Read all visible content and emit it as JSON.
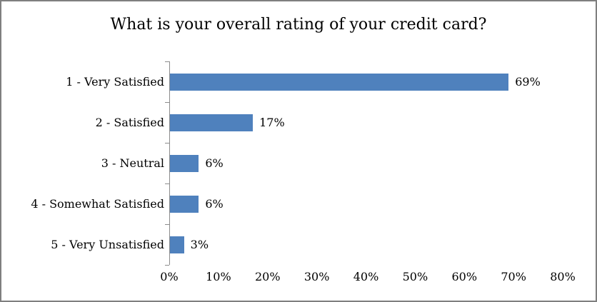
{
  "chart_data": {
    "type": "bar",
    "orientation": "horizontal",
    "title": "What is your overall rating of your credit card?",
    "categories": [
      "1 - Very Satisfied",
      "2 - Satisfied",
      "3 - Neutral",
      "4 - Somewhat Satisfied",
      "5 - Very Unsatisfied"
    ],
    "values": [
      69,
      17,
      6,
      6,
      3
    ],
    "value_labels": [
      "69%",
      "17%",
      "6%",
      "6%",
      "3%"
    ],
    "xlabel": "",
    "ylabel": "",
    "xlim": [
      0,
      80
    ],
    "x_ticks": [
      "0%",
      "10%",
      "20%",
      "30%",
      "40%",
      "50%",
      "60%",
      "70%",
      "80%"
    ],
    "bar_color": "#4f81bd",
    "axis_color": "#8c8c8c",
    "grid": false,
    "legend": "none"
  }
}
